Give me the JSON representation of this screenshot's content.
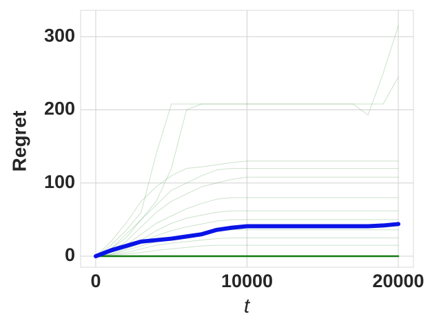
{
  "chart_data": {
    "type": "line",
    "x_label": "t",
    "y_label": "Regret",
    "x": [
      0,
      1000,
      2000,
      3000,
      4000,
      5000,
      6000,
      7000,
      8000,
      9000,
      10000,
      11000,
      12000,
      13000,
      14000,
      15000,
      16000,
      17000,
      18000,
      19000,
      20000
    ],
    "series": [
      {
        "color": "#2e8b2e",
        "opacity": 0.25,
        "linewidth": 1,
        "values": [
          0,
          15,
          35,
          60,
          140,
          208,
          208,
          208,
          208,
          208,
          208,
          208,
          208,
          208,
          208,
          208,
          208,
          208,
          193,
          250,
          315
        ]
      },
      {
        "color": "#2e8b2e",
        "opacity": 0.25,
        "linewidth": 1,
        "values": [
          0,
          10,
          30,
          50,
          75,
          120,
          200,
          208,
          208,
          208,
          208,
          208,
          208,
          208,
          208,
          208,
          208,
          208,
          208,
          208,
          245
        ]
      },
      {
        "color": "#2e8b2e",
        "opacity": 0.25,
        "linewidth": 1,
        "values": [
          0,
          20,
          45,
          75,
          95,
          110,
          120,
          122,
          125,
          128,
          130,
          130,
          130,
          130,
          130,
          130,
          130,
          130,
          130,
          130,
          130
        ]
      },
      {
        "color": "#2e8b2e",
        "opacity": 0.25,
        "linewidth": 1,
        "values": [
          0,
          10,
          25,
          50,
          70,
          90,
          100,
          110,
          118,
          120,
          120,
          120,
          120,
          120,
          120,
          120,
          120,
          120,
          120,
          120,
          120
        ]
      },
      {
        "color": "#2e8b2e",
        "opacity": 0.25,
        "linewidth": 1,
        "values": [
          0,
          8,
          20,
          40,
          60,
          75,
          85,
          95,
          100,
          105,
          108,
          108,
          108,
          108,
          108,
          108,
          108,
          108,
          108,
          108,
          108
        ]
      },
      {
        "color": "#2e8b2e",
        "opacity": 0.25,
        "linewidth": 1,
        "values": [
          0,
          5,
          15,
          30,
          45,
          55,
          65,
          72,
          78,
          80,
          80,
          80,
          80,
          80,
          80,
          80,
          80,
          80,
          80,
          80,
          80
        ]
      },
      {
        "color": "#2e8b2e",
        "opacity": 0.25,
        "linewidth": 1,
        "values": [
          0,
          5,
          12,
          22,
          35,
          45,
          52,
          56,
          60,
          62,
          62,
          62,
          62,
          62,
          62,
          62,
          62,
          62,
          62,
          62,
          62
        ]
      },
      {
        "color": "#2e8b2e",
        "opacity": 0.25,
        "linewidth": 1,
        "values": [
          0,
          3,
          10,
          18,
          28,
          35,
          40,
          44,
          48,
          50,
          50,
          50,
          50,
          50,
          50,
          50,
          50,
          50,
          50,
          50,
          50
        ]
      },
      {
        "color": "#2e8b2e",
        "opacity": 0.25,
        "linewidth": 1,
        "values": [
          0,
          2,
          8,
          14,
          20,
          25,
          28,
          32,
          35,
          36,
          36,
          36,
          36,
          36,
          36,
          36,
          36,
          36,
          36,
          36,
          36
        ]
      },
      {
        "color": "#2e8b2e",
        "opacity": 0.25,
        "linewidth": 1,
        "values": [
          0,
          2,
          5,
          10,
          15,
          18,
          20,
          22,
          24,
          25,
          25,
          25,
          25,
          25,
          25,
          25,
          25,
          25,
          25,
          25,
          25
        ]
      },
      {
        "color": "#2e8b2e",
        "opacity": 0.25,
        "linewidth": 1,
        "values": [
          0,
          1,
          3,
          5,
          8,
          10,
          12,
          14,
          15,
          15,
          15,
          15,
          15,
          15,
          15,
          15,
          15,
          15,
          15,
          15,
          15
        ]
      },
      {
        "color": "#117a11",
        "opacity": 1,
        "linewidth": 2.5,
        "values": [
          0,
          0,
          0,
          0,
          0,
          0,
          0,
          0,
          0,
          0,
          0,
          0,
          0,
          0,
          0,
          0,
          0,
          0,
          0,
          0,
          0
        ]
      },
      {
        "color": "#0a14e6",
        "opacity": 1,
        "linewidth": 6,
        "values": [
          0,
          8,
          14,
          20,
          22,
          24,
          27,
          30,
          36,
          39,
          41,
          41,
          41,
          41,
          41,
          41,
          41,
          41,
          41,
          42,
          44
        ]
      }
    ],
    "xlim": [
      -1000,
      21000
    ],
    "ylim": [
      -15,
      336
    ],
    "xticks": [
      0,
      10000,
      20000
    ],
    "yticks": [
      0,
      100,
      200,
      300
    ],
    "grid": true
  }
}
